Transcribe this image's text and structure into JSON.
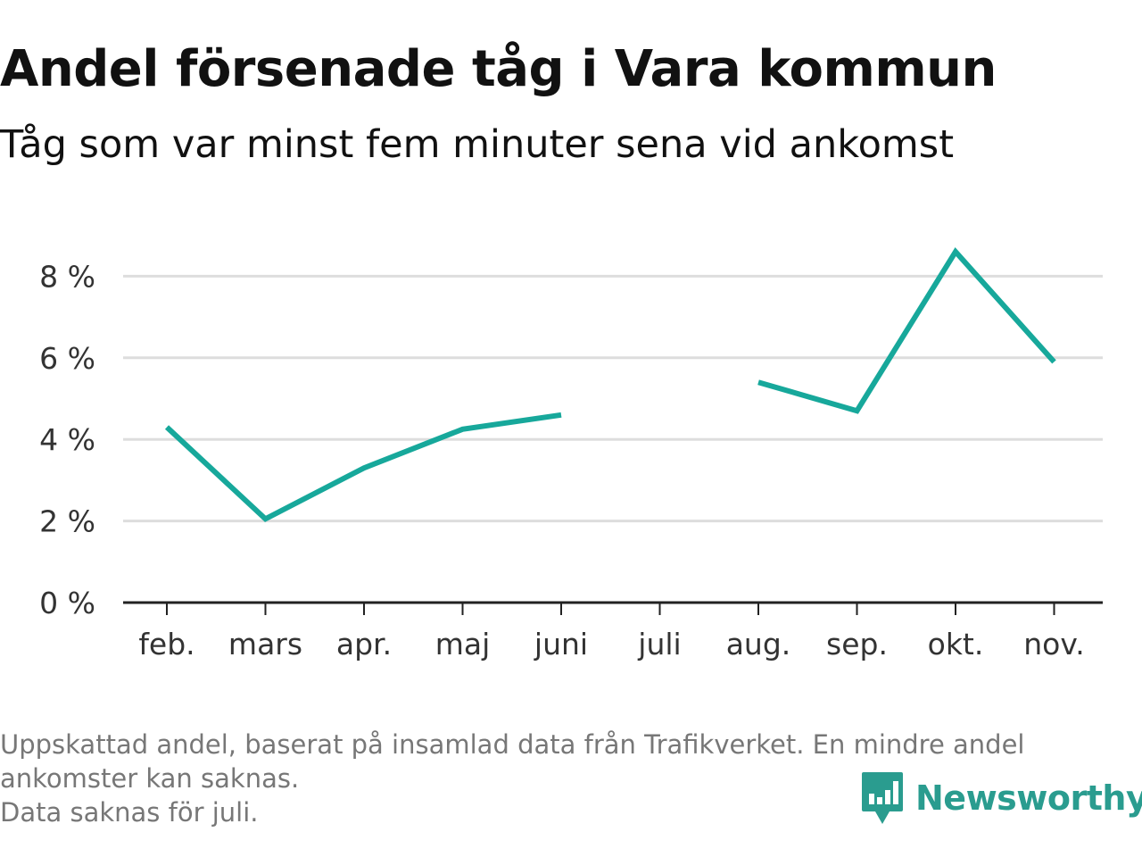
{
  "title": "Andel försenade tåg i Vara kommun",
  "subtitle": "Tåg som var minst fem minuter sena vid ankomst",
  "footer": {
    "note_line1": "Uppskattad andel, baserat på insamlad data från Trafikverket. En mindre andel",
    "note_line2": "ankomster kan saknas.",
    "note_line3": "Data saknas för juli."
  },
  "brand": {
    "name": "Newsworthy",
    "icon": "newsworthy-logo-icon"
  },
  "colors": {
    "line": "#17a89b",
    "grid": "#dddddd",
    "axis": "#222222",
    "brand": "#2a9c8f"
  },
  "chart_data": {
    "type": "line",
    "categories": [
      "feb.",
      "mars",
      "apr.",
      "maj",
      "juni",
      "juli",
      "aug.",
      "sep.",
      "okt.",
      "nov."
    ],
    "series": [
      {
        "values": [
          4.3,
          2.05,
          3.3,
          4.25,
          4.6,
          null,
          5.4,
          4.7,
          8.6,
          5.9
        ]
      }
    ],
    "y_ticks": [
      {
        "value": 0,
        "label": "0 %"
      },
      {
        "value": 2,
        "label": "2 %"
      },
      {
        "value": 4,
        "label": "4 %"
      },
      {
        "value": 6,
        "label": "6 %"
      },
      {
        "value": 8,
        "label": "8 %"
      }
    ],
    "ylim": [
      0,
      8
    ],
    "grid": true,
    "xlabel": "",
    "ylabel": ""
  }
}
